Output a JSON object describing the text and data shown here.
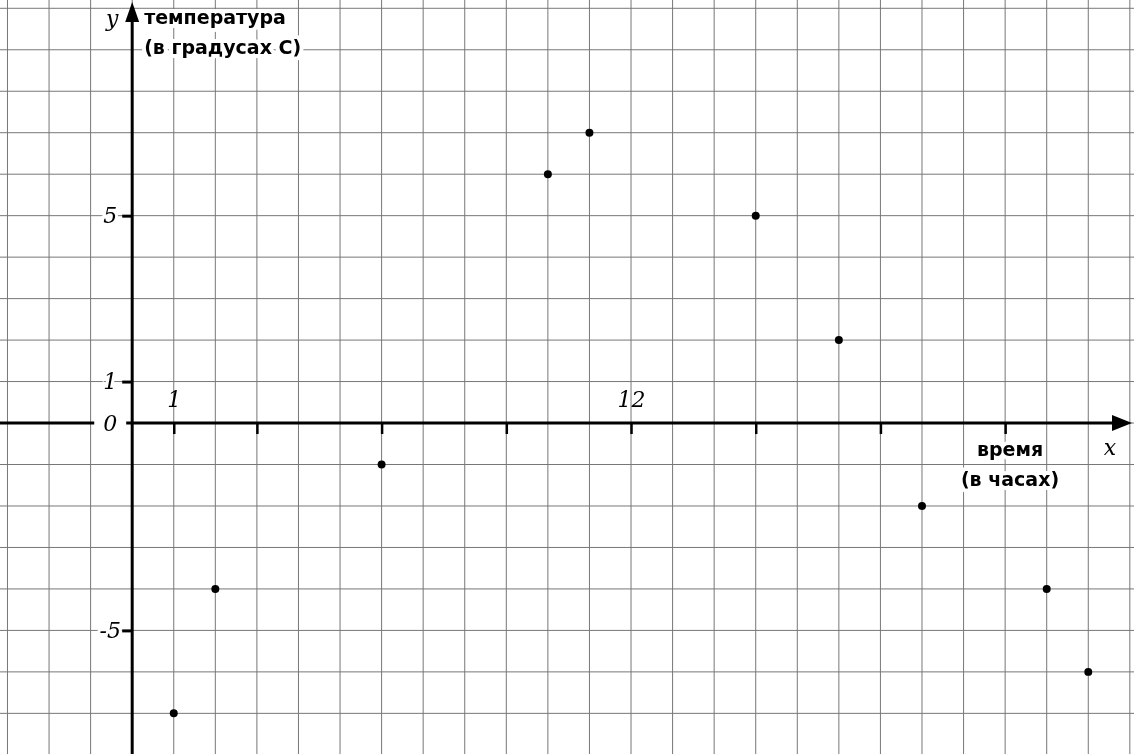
{
  "chart_data": {
    "type": "scatter",
    "xlabel": "время (в часах)",
    "ylabel": "температура (в градусах С)",
    "annotations": [
      "x",
      "y"
    ],
    "x": [
      1,
      2,
      6,
      10,
      11,
      15,
      17,
      19,
      22,
      23
    ],
    "values": [
      -7,
      -4,
      -1,
      6,
      7,
      5,
      2,
      -2,
      -4,
      -6
    ],
    "color": "#000000",
    "marker": "circle",
    "grid": true,
    "xlim": [
      -3.18,
      24.1
    ],
    "ylim": [
      -7.98,
      10.2
    ],
    "xticks": [
      1,
      {
        "value": 3,
        "label": null
      },
      {
        "value": 6,
        "label": null
      },
      {
        "value": 9,
        "label": null
      },
      12,
      {
        "value": 15,
        "label": null
      },
      {
        "value": 18,
        "label": null
      },
      {
        "value": 21,
        "label": null
      }
    ],
    "yticks": [
      -5,
      {
        "value": 0,
        "label": "0"
      },
      1,
      5
    ]
  }
}
